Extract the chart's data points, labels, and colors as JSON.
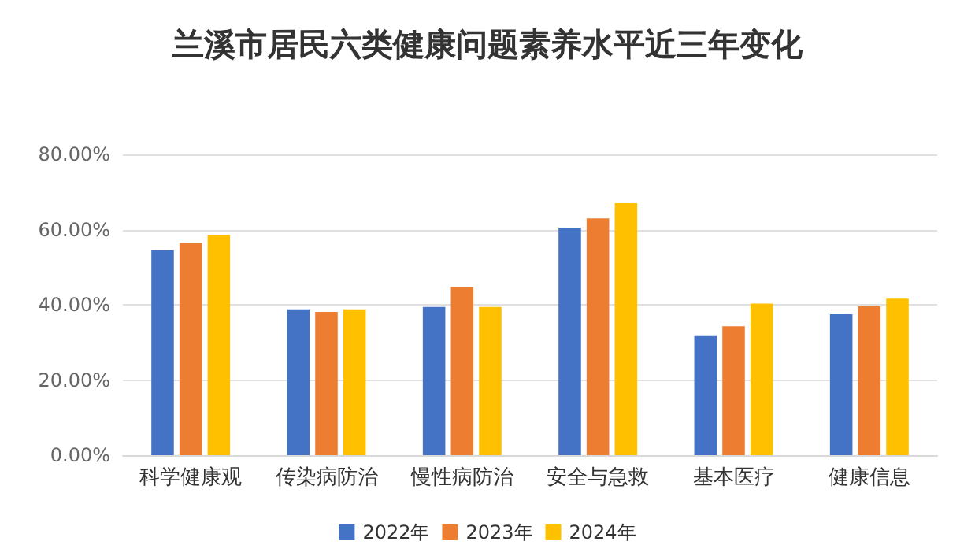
{
  "chart_data": {
    "type": "bar",
    "title": "兰溪市居民六类健康问题素养水平近三年变化",
    "categories": [
      "科学健康观",
      "传染病防治",
      "慢性病防治",
      "安全与急救",
      "基本医疗",
      "健康信息"
    ],
    "series": [
      {
        "name": "2022年",
        "color": "#4472c4",
        "values": [
          54.5,
          38.8,
          39.4,
          60.5,
          31.7,
          37.5
        ]
      },
      {
        "name": "2023年",
        "color": "#ed7d31",
        "values": [
          56.5,
          38.1,
          44.8,
          63.0,
          34.3,
          39.6
        ]
      },
      {
        "name": "2024年",
        "color": "#ffc000",
        "values": [
          58.6,
          38.8,
          39.4,
          67.0,
          40.3,
          41.6
        ]
      }
    ],
    "ylim": [
      0,
      80
    ],
    "yticks": [
      {
        "value": 0,
        "label": "0.00%"
      },
      {
        "value": 20,
        "label": "20.00%"
      },
      {
        "value": 40,
        "label": "40.00%"
      },
      {
        "value": 60,
        "label": "60.00%"
      },
      {
        "value": 80,
        "label": "80.00%"
      }
    ],
    "grid": "y",
    "legend": "bottom"
  }
}
